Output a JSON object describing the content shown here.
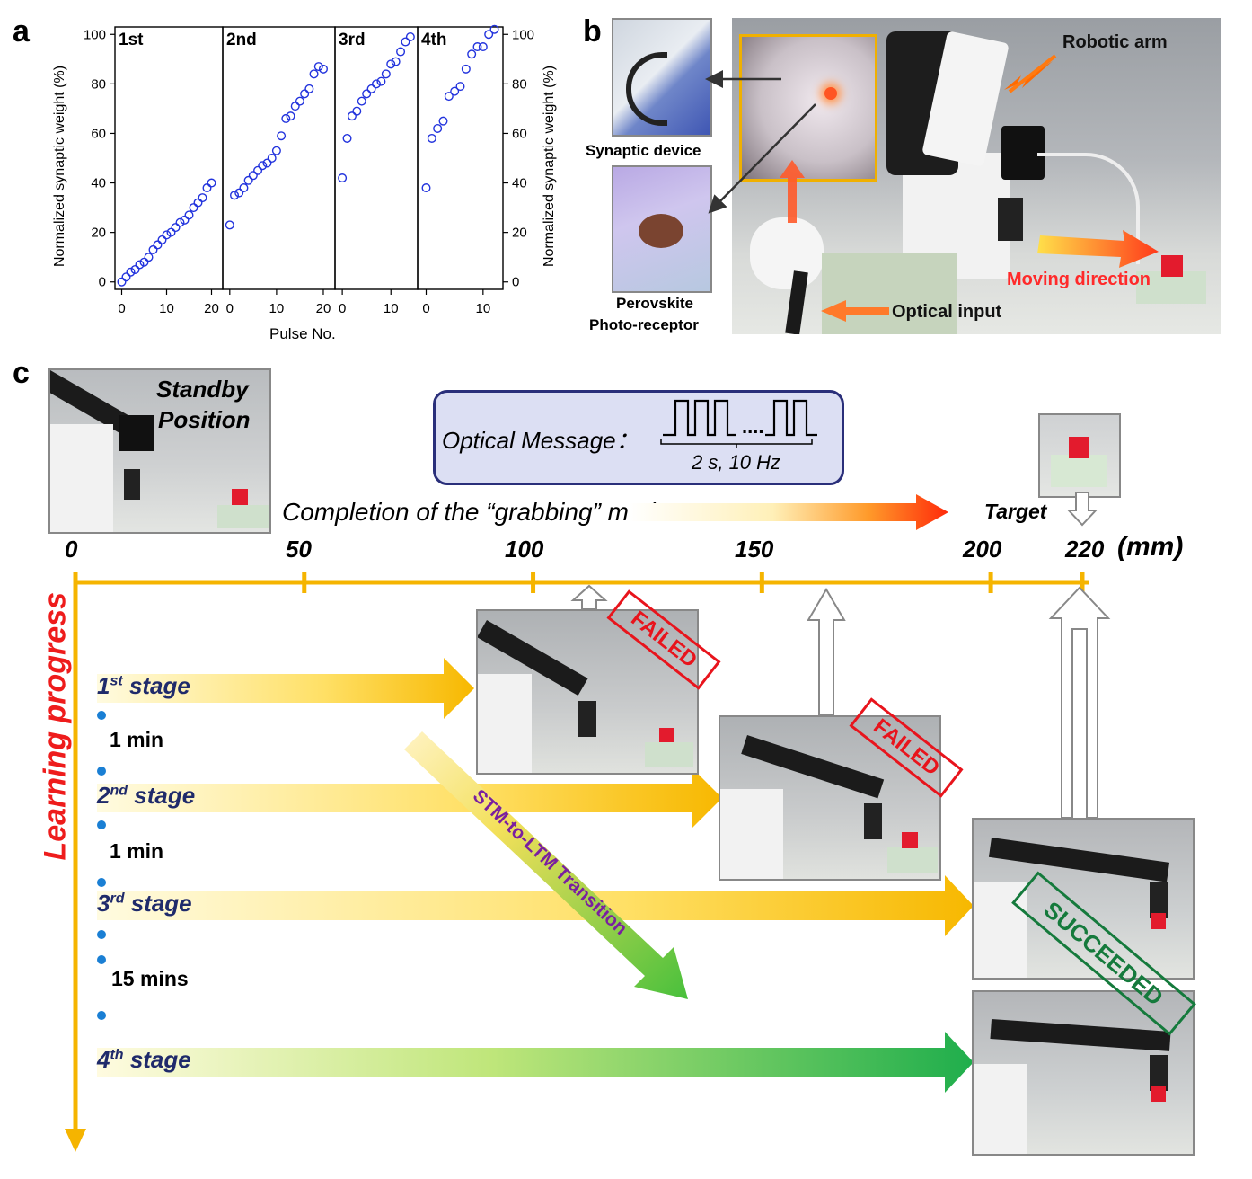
{
  "panels": {
    "a": "a",
    "b": "b",
    "c": "c"
  },
  "panel_a": {
    "ylabel_left": "Normalized synaptic weight (%)",
    "ylabel_right": "Normalized synaptic weight (%)",
    "xlabel": "Pulse No.",
    "y_ticks": [
      "0",
      "20",
      "40",
      "60",
      "80",
      "100"
    ],
    "subplot_x_ticks": [
      [
        "0",
        "10",
        "20"
      ],
      [
        "0",
        "10",
        "20"
      ],
      [
        "0",
        "10"
      ],
      [
        "0",
        "10"
      ]
    ]
  },
  "chart_data": {
    "type": "scatter",
    "xlabel": "Pulse No.",
    "ylabel": "Normalized synaptic weight (%)",
    "ylim": [
      -3,
      103
    ],
    "marker": "open-circle",
    "marker_color": "#2233dd",
    "series": [
      {
        "name": "1st",
        "xlim": [
          -1.5,
          22.5
        ],
        "x": [
          0,
          1,
          2,
          3,
          4,
          5,
          6,
          7,
          8,
          9,
          10,
          11,
          12,
          13,
          14,
          15,
          16,
          17,
          18,
          19,
          20
        ],
        "y": [
          0,
          2,
          4,
          5,
          7,
          8,
          10,
          13,
          15,
          17,
          19,
          20,
          22,
          24,
          25,
          27,
          30,
          32,
          34,
          38,
          40
        ]
      },
      {
        "name": "2nd",
        "xlim": [
          -1.5,
          22.5
        ],
        "x": [
          0,
          1,
          2,
          3,
          4,
          5,
          6,
          7,
          8,
          9,
          10,
          11,
          12,
          13,
          14,
          15,
          16,
          17,
          18,
          19,
          20
        ],
        "y": [
          23,
          35,
          36,
          38,
          41,
          43,
          45,
          47,
          48,
          50,
          53,
          59,
          66,
          67,
          71,
          73,
          76,
          78,
          84,
          87,
          86
        ]
      },
      {
        "name": "3rd",
        "xlim": [
          -1.5,
          15.5
        ],
        "x": [
          0,
          1,
          2,
          3,
          4,
          5,
          6,
          7,
          8,
          9,
          10,
          11,
          12,
          13,
          14
        ],
        "y": [
          42,
          58,
          67,
          69,
          73,
          76,
          78,
          80,
          81,
          84,
          88,
          89,
          93,
          97,
          99
        ]
      },
      {
        "name": "4th",
        "xlim": [
          -1.5,
          13.5
        ],
        "x": [
          0,
          1,
          2,
          3,
          4,
          5,
          6,
          7,
          8,
          9,
          10,
          11,
          12
        ],
        "y": [
          38,
          58,
          62,
          65,
          75,
          77,
          79,
          86,
          92,
          95,
          95,
          100,
          102
        ]
      }
    ]
  },
  "panel_b": {
    "synaptic_device": "Synaptic device",
    "perovskite_line1": "Perovskite",
    "perovskite_line2": "Photo-receptor",
    "robotic_arm": "Robotic arm",
    "moving_direction": "Moving direction",
    "optical_input": "Optical input"
  },
  "panel_c": {
    "standby_line1": "Standby",
    "standby_line2": "Position",
    "optical_message": "Optical Message：",
    "pulse_label": "2 s, 10 Hz",
    "pulse_ellipsis": "....",
    "completion_text": "Completion of the “grabbing” motion",
    "target": "Target",
    "ticks": [
      "0",
      "50",
      "100",
      "150",
      "200",
      "220"
    ],
    "unit": "(mm)",
    "learning_progress": "Learning progress",
    "stages": [
      {
        "num": "1",
        "sup": "st",
        "word": "stage",
        "end_mm": 100,
        "result": "FAILED"
      },
      {
        "num": "2",
        "sup": "nd",
        "word": "stage",
        "end_mm": 150,
        "result": "FAILED"
      },
      {
        "num": "3",
        "sup": "rd",
        "word": "stage",
        "end_mm": 220,
        "result": "SUCCEEDED"
      },
      {
        "num": "4",
        "sup": "th",
        "word": "stage",
        "end_mm": 220,
        "result": ""
      }
    ],
    "intervals": [
      "1 min",
      "1 min",
      "15 mins"
    ],
    "transition": "STM-to-LTM Transition",
    "failed": "FAILED",
    "succeeded": "SUCCEEDED"
  },
  "colors": {
    "axis_orange": "#f5b400",
    "stage_dark": "#1f2a6b",
    "learning_red": "#ee1c1c",
    "failed_red": "#e8141c",
    "succeeded_green": "#157a3c",
    "transition_purple": "#7a1fa0",
    "marker_blue": "#2233dd"
  }
}
